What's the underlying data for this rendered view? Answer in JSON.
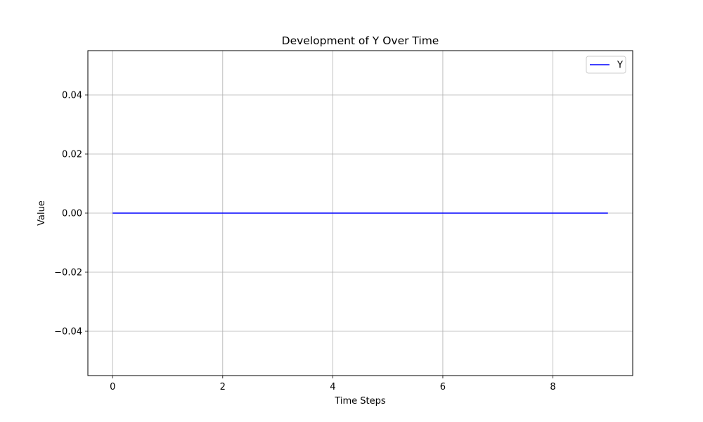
{
  "chart_data": {
    "type": "line",
    "title": "Development of Y Over Time",
    "xlabel": "Time Steps",
    "ylabel": "Value",
    "xlim": [
      -0.45,
      9.45
    ],
    "ylim": [
      -0.055,
      0.055
    ],
    "xticks": [
      0,
      2,
      4,
      6,
      8
    ],
    "xtick_labels": [
      "0",
      "2",
      "4",
      "6",
      "8"
    ],
    "yticks": [
      -0.04,
      -0.02,
      0.0,
      0.02,
      0.04
    ],
    "ytick_labels": [
      "−0.04",
      "−0.02",
      "0.00",
      "0.02",
      "0.04"
    ],
    "grid": true,
    "legend_position": "top-right",
    "x": [
      0,
      1,
      2,
      3,
      4,
      5,
      6,
      7,
      8,
      9
    ],
    "series": [
      {
        "name": "Y",
        "color": "#0000ff",
        "values": [
          0,
          0,
          0,
          0,
          0,
          0,
          0,
          0,
          0,
          0
        ]
      }
    ]
  }
}
